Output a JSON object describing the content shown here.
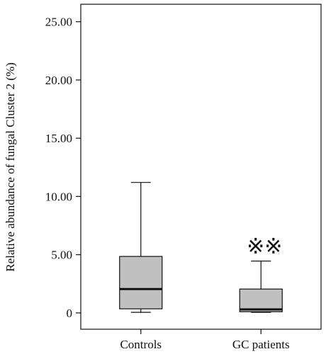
{
  "chart_data": {
    "type": "boxplot",
    "title": "",
    "xlabel": "",
    "ylabel": "Relative abundance of fungal Cluster 2 (%)",
    "ylim": [
      -1.4,
      26.5
    ],
    "yticks": [
      0,
      5,
      10,
      15,
      20,
      25
    ],
    "ytick_labels": [
      "0",
      "5.00",
      "10.00",
      "15.00",
      "20.00",
      "25.00"
    ],
    "categories": [
      "Controls",
      "GC patients"
    ],
    "boxes": [
      {
        "name": "Controls",
        "whisker_low": 0.05,
        "q1": 0.35,
        "median": 2.05,
        "q3": 4.85,
        "whisker_high": 11.2,
        "annotation": ""
      },
      {
        "name": "GC patients",
        "whisker_low": 0.05,
        "q1": 0.1,
        "median": 0.3,
        "q3": 2.05,
        "whisker_high": 4.45,
        "annotation": "※※"
      }
    ],
    "box_fill": "#c0c0c0",
    "line_color": "#111111",
    "grid": false,
    "legend": "none"
  }
}
